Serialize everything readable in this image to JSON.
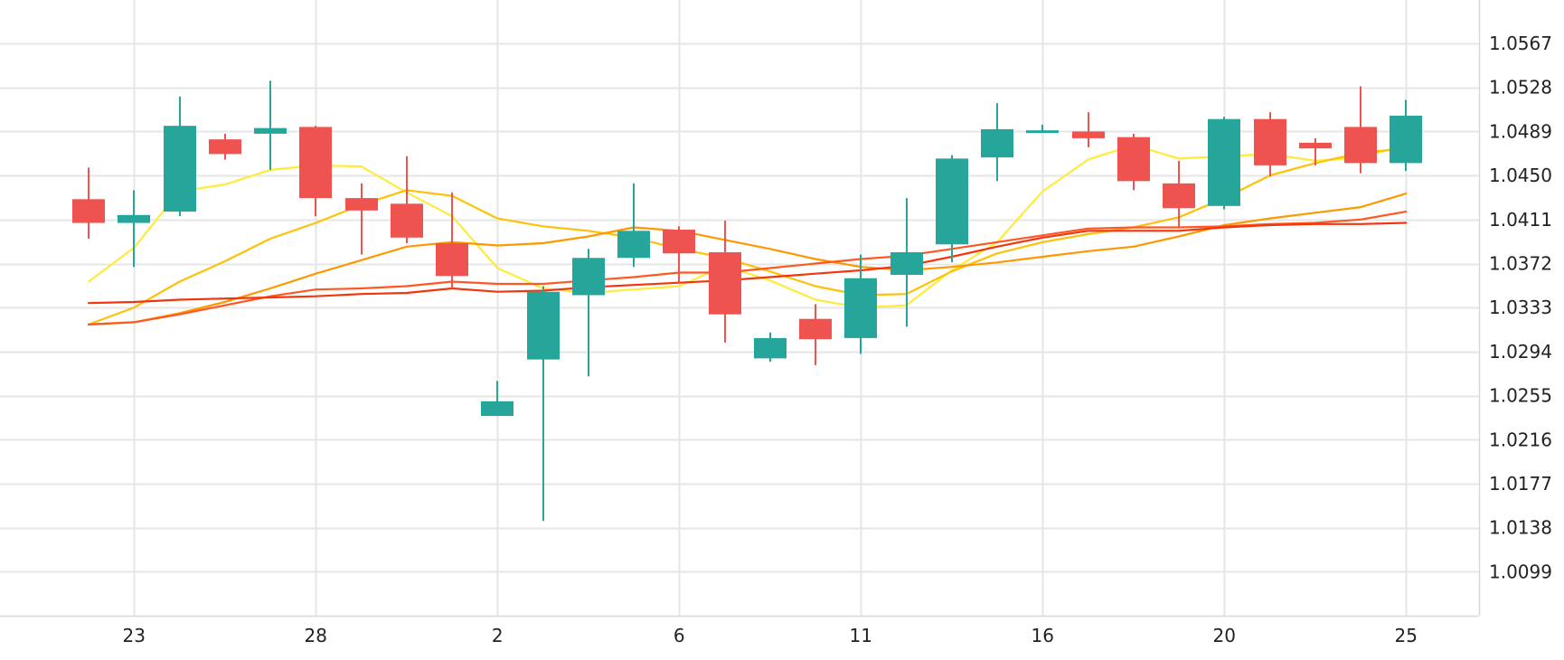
{
  "chart_data": {
    "type": "candlestick",
    "x_tick_labels": [
      "23",
      "28",
      "2",
      "6",
      "11",
      "16",
      "20",
      "25"
    ],
    "y_tick_labels": [
      "1.0099",
      "1.0138",
      "1.0177",
      "1.0216",
      "1.0255",
      "1.0294",
      "1.0333",
      "1.0372",
      "1.0411",
      "1.0450",
      "1.0489",
      "1.0528",
      "1.0567"
    ],
    "ylim": [
      1.006,
      1.0606
    ],
    "grid": true,
    "candles": [
      {
        "index": 0,
        "open": 1.0429,
        "high": 1.0457,
        "low": 1.0394,
        "close": 1.0408
      },
      {
        "index": 1,
        "open": 1.0408,
        "high": 1.0437,
        "low": 1.0369,
        "close": 1.0415
      },
      {
        "index": 2,
        "open": 1.0418,
        "high": 1.052,
        "low": 1.0414,
        "close": 1.0494
      },
      {
        "index": 3,
        "open": 1.0482,
        "high": 1.0487,
        "low": 1.0464,
        "close": 1.0469
      },
      {
        "index": 4,
        "open": 1.0487,
        "high": 1.0534,
        "low": 1.0455,
        "close": 1.0492
      },
      {
        "index": 5,
        "open": 1.0493,
        "high": 1.0494,
        "low": 1.0414,
        "close": 1.043
      },
      {
        "index": 6,
        "open": 1.043,
        "high": 1.0443,
        "low": 1.038,
        "close": 1.0419
      },
      {
        "index": 7,
        "open": 1.0425,
        "high": 1.0467,
        "low": 1.039,
        "close": 1.0395
      },
      {
        "index": 8,
        "open": 1.039,
        "high": 1.0435,
        "low": 1.035,
        "close": 1.0361
      },
      {
        "index": 9,
        "open": 1.0237,
        "high": 1.0268,
        "low": 1.0237,
        "close": 1.025
      },
      {
        "index": 10,
        "open": 1.0287,
        "high": 1.0352,
        "low": 1.0144,
        "close": 1.0347
      },
      {
        "index": 11,
        "open": 1.0344,
        "high": 1.0385,
        "low": 1.0272,
        "close": 1.0377
      },
      {
        "index": 12,
        "open": 1.0377,
        "high": 1.0443,
        "low": 1.0369,
        "close": 1.0401
      },
      {
        "index": 13,
        "open": 1.0402,
        "high": 1.0405,
        "low": 1.0354,
        "close": 1.0381
      },
      {
        "index": 14,
        "open": 1.0382,
        "high": 1.041,
        "low": 1.0302,
        "close": 1.0327
      },
      {
        "index": 15,
        "open": 1.0288,
        "high": 1.0311,
        "low": 1.0285,
        "close": 1.0306
      },
      {
        "index": 16,
        "open": 1.0323,
        "high": 1.0336,
        "low": 1.0282,
        "close": 1.0305
      },
      {
        "index": 17,
        "open": 1.0306,
        "high": 1.038,
        "low": 1.0292,
        "close": 1.0359
      },
      {
        "index": 18,
        "open": 1.0362,
        "high": 1.043,
        "low": 1.0316,
        "close": 1.0382
      },
      {
        "index": 19,
        "open": 1.0389,
        "high": 1.0468,
        "low": 1.0373,
        "close": 1.0465
      },
      {
        "index": 20,
        "open": 1.0466,
        "high": 1.0514,
        "low": 1.0445,
        "close": 1.0491
      },
      {
        "index": 21,
        "open": 1.0489,
        "high": 1.0495,
        "low": 1.0488,
        "close": 1.049
      },
      {
        "index": 22,
        "open": 1.0489,
        "high": 1.0506,
        "low": 1.0475,
        "close": 1.0483
      },
      {
        "index": 23,
        "open": 1.0484,
        "high": 1.0487,
        "low": 1.0437,
        "close": 1.0445
      },
      {
        "index": 24,
        "open": 1.0443,
        "high": 1.0463,
        "low": 1.0404,
        "close": 1.0421
      },
      {
        "index": 25,
        "open": 1.0423,
        "high": 1.0502,
        "low": 1.042,
        "close": 1.05
      },
      {
        "index": 26,
        "open": 1.05,
        "high": 1.0506,
        "low": 1.0449,
        "close": 1.0459
      },
      {
        "index": 27,
        "open": 1.0479,
        "high": 1.0483,
        "low": 1.0459,
        "close": 1.0474
      },
      {
        "index": 28,
        "open": 1.0493,
        "high": 1.0529,
        "low": 1.0452,
        "close": 1.0461
      },
      {
        "index": 29,
        "open": 1.0461,
        "high": 1.0517,
        "low": 1.0454,
        "close": 1.0503
      }
    ],
    "x_tick_positions": [
      1,
      5,
      9,
      13,
      17,
      21,
      25,
      29
    ],
    "series": [
      {
        "color": "#FFEB3B",
        "values": [
          1.0356,
          1.0386,
          1.0436,
          1.0442,
          1.0455,
          1.0459,
          1.0458,
          1.0435,
          1.0414,
          1.0368,
          1.035,
          1.0346,
          1.0349,
          1.0352,
          1.037,
          1.0357,
          1.034,
          1.0333,
          1.0335,
          1.0366,
          1.0391,
          1.0436,
          1.0464,
          1.0477,
          1.0465,
          1.0467,
          1.0469,
          1.0463,
          1.0466,
          1.0477
        ]
      },
      {
        "color": "#FFC107",
        "values": [
          1.0318,
          1.0333,
          1.0356,
          1.0374,
          1.0394,
          1.0408,
          1.0424,
          1.0437,
          1.0432,
          1.0412,
          1.0405,
          1.0401,
          1.0395,
          1.0385,
          1.0377,
          1.0365,
          1.0352,
          1.0344,
          1.0345,
          1.0365,
          1.0381,
          1.0391,
          1.0398,
          1.0404,
          1.0413,
          1.043,
          1.045,
          1.0461,
          1.047,
          1.0474
        ]
      },
      {
        "color": "#FF9800",
        "values": [
          1.0318,
          1.032,
          1.0328,
          1.0338,
          1.035,
          1.0363,
          1.0375,
          1.0387,
          1.0391,
          1.0388,
          1.039,
          1.0396,
          1.0404,
          1.0401,
          1.0393,
          1.0385,
          1.0376,
          1.0369,
          1.0366,
          1.0369,
          1.0373,
          1.0378,
          1.0383,
          1.0387,
          1.0396,
          1.0406,
          1.0412,
          1.0417,
          1.0422,
          1.0434
        ]
      },
      {
        "color": "#FF5722",
        "values": [
          1.0318,
          1.032,
          1.0327,
          1.0335,
          1.0343,
          1.0349,
          1.035,
          1.0352,
          1.0356,
          1.0354,
          1.0354,
          1.0357,
          1.036,
          1.0364,
          1.0364,
          1.0368,
          1.0372,
          1.0376,
          1.0379,
          1.0385,
          1.0391,
          1.0397,
          1.0403,
          1.0404,
          1.0404,
          1.0405,
          1.0407,
          1.0408,
          1.0411,
          1.0418
        ]
      },
      {
        "color": "#F4340B",
        "values": [
          1.0337,
          1.0338,
          1.034,
          1.0341,
          1.0342,
          1.0343,
          1.0345,
          1.0346,
          1.035,
          1.0347,
          1.0348,
          1.0351,
          1.0353,
          1.0355,
          1.0357,
          1.036,
          1.0363,
          1.0366,
          1.037,
          1.0378,
          1.0387,
          1.0395,
          1.0401,
          1.0401,
          1.0401,
          1.0404,
          1.0406,
          1.0407,
          1.0407,
          1.0408
        ]
      }
    ],
    "colors": {
      "up": "#26A69A",
      "down": "#EF5350",
      "grid": "#E6E6E6",
      "axis": "#D8D8D8",
      "text": "#222222"
    }
  }
}
